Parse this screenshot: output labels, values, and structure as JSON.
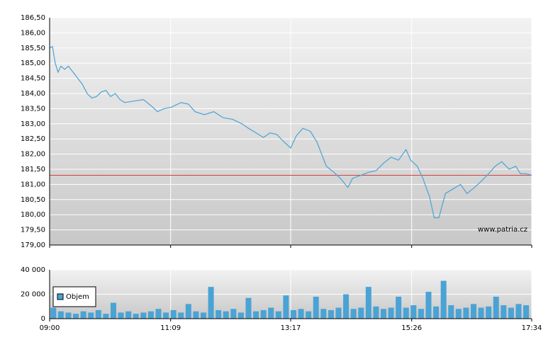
{
  "chart_data": [
    {
      "type": "line",
      "color": "#4aa3d4",
      "reference_line": 181.3,
      "reference_color": "#d04040",
      "watermark": "www.patria.cz",
      "xlim": [
        540,
        1054
      ],
      "ylim": [
        179,
        186.5
      ],
      "yticks": [
        {
          "value": 179,
          "label": "179,00"
        },
        {
          "value": 179.5,
          "label": "179,50"
        },
        {
          "value": 180,
          "label": "180,00"
        },
        {
          "value": 180.5,
          "label": "180,50"
        },
        {
          "value": 181,
          "label": "181,00"
        },
        {
          "value": 181.5,
          "label": "181,50"
        },
        {
          "value": 182,
          "label": "182,00"
        },
        {
          "value": 182.5,
          "label": "182,50"
        },
        {
          "value": 183,
          "label": "183,00"
        },
        {
          "value": 183.5,
          "label": "183,50"
        },
        {
          "value": 184,
          "label": "184,00"
        },
        {
          "value": 184.5,
          "label": "184,50"
        },
        {
          "value": 185,
          "label": "185,00"
        },
        {
          "value": 185.5,
          "label": "185,50"
        },
        {
          "value": 186,
          "label": "186,00"
        },
        {
          "value": 186.5,
          "label": "186,50"
        }
      ],
      "x": [
        540,
        543,
        546,
        549,
        552,
        556,
        560,
        565,
        570,
        575,
        580,
        585,
        590,
        595,
        600,
        605,
        610,
        615,
        620,
        630,
        640,
        648,
        655,
        662,
        670,
        680,
        688,
        695,
        705,
        715,
        725,
        735,
        745,
        752,
        760,
        768,
        775,
        782,
        790,
        797,
        803,
        810,
        818,
        825,
        835,
        843,
        850,
        858,
        863,
        872,
        880,
        888,
        896,
        904,
        912,
        920,
        925,
        932,
        938,
        945,
        950,
        955,
        962,
        970,
        978,
        985,
        993,
        1000,
        1008,
        1015,
        1022,
        1030,
        1037,
        1042,
        1048,
        1054
      ],
      "values": [
        185.5,
        185.55,
        185.0,
        184.7,
        184.9,
        184.8,
        184.9,
        184.7,
        184.5,
        184.3,
        184.0,
        183.85,
        183.9,
        184.05,
        184.1,
        183.9,
        184.0,
        183.8,
        183.7,
        183.75,
        183.8,
        183.6,
        183.4,
        183.5,
        183.55,
        183.7,
        183.65,
        183.4,
        183.3,
        183.4,
        183.2,
        183.15,
        183.0,
        182.85,
        182.7,
        182.55,
        182.7,
        182.65,
        182.4,
        182.2,
        182.6,
        182.85,
        182.75,
        182.4,
        181.6,
        181.4,
        181.2,
        180.9,
        181.2,
        181.3,
        181.4,
        181.45,
        181.7,
        181.9,
        181.8,
        182.15,
        181.8,
        181.6,
        181.2,
        180.6,
        179.9,
        179.9,
        180.7,
        180.85,
        181.0,
        180.7,
        180.9,
        181.1,
        181.35,
        181.6,
        181.75,
        181.5,
        181.6,
        181.35,
        181.35,
        181.3
      ]
    },
    {
      "type": "bar",
      "xlim": [
        540,
        1054
      ],
      "ylim": [
        0,
        40000
      ],
      "yticks": [
        0,
        {
          "value": 20000,
          "label": "20 000"
        },
        {
          "value": 40000,
          "label": "40 000"
        }
      ],
      "xticks": [
        {
          "value": 540,
          "label": "09:00"
        },
        {
          "value": 669,
          "label": "11:09"
        },
        {
          "value": 797,
          "label": "13:17"
        },
        {
          "value": 926,
          "label": "15:26"
        },
        {
          "value": 1054,
          "label": "17:34"
        }
      ],
      "x": [
        544,
        552,
        560,
        568,
        576,
        584,
        592,
        600,
        608,
        616,
        624,
        632,
        640,
        648,
        656,
        664,
        672,
        680,
        688,
        696,
        704,
        712,
        720,
        728,
        736,
        744,
        752,
        760,
        768,
        776,
        784,
        792,
        800,
        808,
        816,
        824,
        832,
        840,
        848,
        856,
        864,
        872,
        880,
        888,
        896,
        904,
        912,
        920,
        928,
        936,
        944,
        952,
        960,
        968,
        976,
        984,
        992,
        1000,
        1008,
        1016,
        1024,
        1032,
        1040,
        1048
      ],
      "series": [
        {
          "name": "Objem",
          "color": "#4aa3d4",
          "values": [
            9000,
            6000,
            5000,
            4000,
            6000,
            5000,
            7000,
            4000,
            13000,
            5000,
            6000,
            4000,
            5000,
            6000,
            8000,
            5000,
            7000,
            5000,
            12000,
            6000,
            5000,
            26000,
            7000,
            6000,
            8000,
            5000,
            17000,
            6000,
            7000,
            9000,
            6000,
            19000,
            7000,
            8000,
            6000,
            18000,
            8000,
            7000,
            9000,
            20000,
            8000,
            9000,
            26000,
            10000,
            8000,
            9000,
            18000,
            9000,
            11000,
            8000,
            22000,
            10000,
            31000,
            11000,
            8000,
            9000,
            12000,
            9000,
            10000,
            18000,
            11000,
            9000,
            12000,
            11000
          ]
        }
      ]
    }
  ]
}
